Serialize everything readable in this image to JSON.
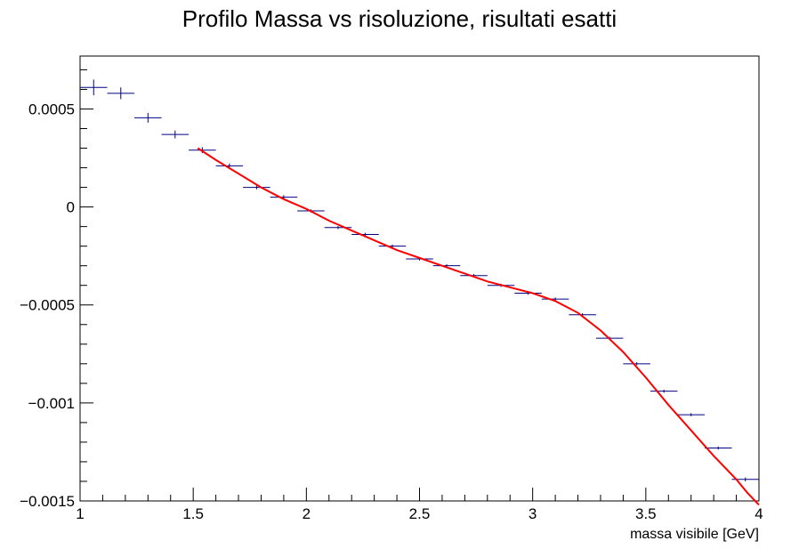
{
  "chart_data": {
    "type": "scatter",
    "title": "Profilo Massa vs risoluzione, risultati esatti",
    "xlabel": "massa visibile [GeV]",
    "ylabel": "",
    "xlim": [
      1,
      4
    ],
    "ylim": [
      -0.0015,
      0.00077
    ],
    "grid": false,
    "x_tick_labels": [
      "1",
      "1.5",
      "2",
      "2.5",
      "3",
      "3.5",
      "4"
    ],
    "x_ticks": [
      1,
      1.5,
      2,
      2.5,
      3,
      3.5,
      4
    ],
    "y_tick_labels": [
      "−0.0015",
      "−0.001",
      "−0.0005",
      "0",
      "0.0005"
    ],
    "y_ticks": [
      -0.0015,
      -0.001,
      -0.0005,
      0,
      0.0005
    ],
    "series": [
      {
        "kind": "profile-points",
        "color": "#000080",
        "bin_half_width": 0.06,
        "x": [
          1.06,
          1.18,
          1.3,
          1.42,
          1.54,
          1.66,
          1.78,
          1.9,
          2.02,
          2.14,
          2.26,
          2.38,
          2.5,
          2.62,
          2.74,
          2.86,
          2.98,
          3.1,
          3.22,
          3.34,
          3.46,
          3.58,
          3.7,
          3.82,
          3.94
        ],
        "y": [
          0.00061,
          0.00058,
          0.000455,
          0.00037,
          0.00029,
          0.00021,
          0.0001,
          5e-05,
          -2e-05,
          -0.000105,
          -0.00014,
          -0.0002,
          -0.000265,
          -0.0003,
          -0.00035,
          -0.0004,
          -0.00044,
          -0.00047,
          -0.00055,
          -0.00067,
          -0.0008,
          -0.00094,
          -0.00106,
          -0.00123,
          -0.00139
        ],
        "yerr": [
          4e-05,
          3e-05,
          2.5e-05,
          2e-05,
          1.5e-05,
          1.2e-05,
          1e-05,
          1e-05,
          8e-06,
          8e-06,
          8e-06,
          8e-06,
          8e-06,
          8e-06,
          8e-06,
          8e-06,
          8e-06,
          8e-06,
          8e-06,
          8e-06,
          8e-06,
          8e-06,
          8e-06,
          8e-06,
          1e-05
        ]
      },
      {
        "kind": "fit-curve",
        "color": "#ff0000",
        "x": [
          1.52,
          1.6,
          1.7,
          1.8,
          1.9,
          2.0,
          2.1,
          2.2,
          2.3,
          2.4,
          2.5,
          2.6,
          2.7,
          2.8,
          2.9,
          3.0,
          3.1,
          3.2,
          3.3,
          3.4,
          3.5,
          3.6,
          3.7,
          3.8,
          3.9,
          3.95,
          4.0
        ],
        "y": [
          0.0003,
          0.00024,
          0.00017,
          0.0001,
          4e-05,
          -1e-05,
          -7e-05,
          -0.00012,
          -0.00017,
          -0.00022,
          -0.00026,
          -0.0003,
          -0.00034,
          -0.00038,
          -0.00041,
          -0.00044,
          -0.00048,
          -0.00054,
          -0.00063,
          -0.00074,
          -0.00087,
          -0.00101,
          -0.00114,
          -0.00127,
          -0.00139,
          -0.00146,
          -0.00152
        ]
      }
    ]
  }
}
